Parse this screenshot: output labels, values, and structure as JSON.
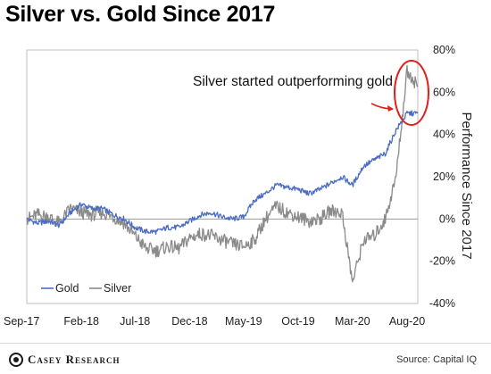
{
  "header": {
    "title": "Silver vs. Gold Since 2017"
  },
  "footer": {
    "brand": "Casey Research",
    "source": "Source: Capital IQ"
  },
  "colors": {
    "gold": "#4a6cc4",
    "silver": "#8a8a8a",
    "highlight": "#e0201b",
    "zero_line": "#9a9a9a"
  },
  "chart_data": {
    "type": "line",
    "title": "Silver vs. Gold Since 2017",
    "ylabel": "Performance Since 2017",
    "ylim": [
      -40,
      80
    ],
    "yticks": [
      -40,
      -20,
      0,
      20,
      40,
      60,
      80
    ],
    "ytick_labels": [
      "-40%",
      "-20%",
      "0%",
      "20%",
      "40%",
      "60%",
      "80%"
    ],
    "xlim": [
      "2017-09-01",
      "2020-08-31"
    ],
    "xticks": [
      "2017-09-01",
      "2018-02-01",
      "2018-07-01",
      "2018-12-01",
      "2019-05-01",
      "2019-10-01",
      "2020-03-01",
      "2020-08-01"
    ],
    "xtick_labels": [
      "Sep-17",
      "Feb-18",
      "Jul-18",
      "Dec-18",
      "May-19",
      "Oct-19",
      "Mar-20",
      "Aug-20"
    ],
    "legend": {
      "placement": "bottom-left",
      "entries": [
        "Gold",
        "Silver"
      ]
    },
    "annotation": "Silver started outperforming gold",
    "series": [
      {
        "name": "Gold",
        "color": "#4a6cc4",
        "points": [
          [
            "2017-09-01",
            0
          ],
          [
            "2017-10-01",
            -2
          ],
          [
            "2017-11-01",
            -1
          ],
          [
            "2017-12-01",
            -3
          ],
          [
            "2018-01-01",
            3
          ],
          [
            "2018-02-01",
            7
          ],
          [
            "2018-03-01",
            5
          ],
          [
            "2018-04-01",
            5
          ],
          [
            "2018-05-01",
            2
          ],
          [
            "2018-06-01",
            0
          ],
          [
            "2018-07-01",
            -4
          ],
          [
            "2018-08-01",
            -6
          ],
          [
            "2018-09-01",
            -6
          ],
          [
            "2018-10-01",
            -4
          ],
          [
            "2018-11-01",
            -4
          ],
          [
            "2018-12-01",
            -1
          ],
          [
            "2019-01-01",
            2
          ],
          [
            "2019-02-01",
            3
          ],
          [
            "2019-03-01",
            1
          ],
          [
            "2019-04-01",
            0
          ],
          [
            "2019-05-01",
            1
          ],
          [
            "2019-06-01",
            9
          ],
          [
            "2019-07-01",
            12
          ],
          [
            "2019-08-01",
            16
          ],
          [
            "2019-09-01",
            15
          ],
          [
            "2019-10-01",
            14
          ],
          [
            "2019-11-01",
            12
          ],
          [
            "2019-12-01",
            14
          ],
          [
            "2020-01-01",
            17
          ],
          [
            "2020-02-01",
            20
          ],
          [
            "2020-03-01",
            16
          ],
          [
            "2020-04-01",
            25
          ],
          [
            "2020-05-01",
            28
          ],
          [
            "2020-06-01",
            31
          ],
          [
            "2020-07-01",
            42
          ],
          [
            "2020-08-01",
            50
          ],
          [
            "2020-08-31",
            50
          ]
        ]
      },
      {
        "name": "Silver",
        "color": "#8a8a8a",
        "points": [
          [
            "2017-09-01",
            0
          ],
          [
            "2017-10-01",
            2
          ],
          [
            "2017-11-01",
            1
          ],
          [
            "2017-12-01",
            -2
          ],
          [
            "2018-01-01",
            5
          ],
          [
            "2018-02-01",
            3
          ],
          [
            "2018-03-01",
            2
          ],
          [
            "2018-04-01",
            3
          ],
          [
            "2018-05-01",
            1
          ],
          [
            "2018-06-01",
            -2
          ],
          [
            "2018-07-01",
            -8
          ],
          [
            "2018-08-01",
            -14
          ],
          [
            "2018-09-01",
            -15
          ],
          [
            "2018-10-01",
            -13
          ],
          [
            "2018-11-01",
            -14
          ],
          [
            "2018-12-01",
            -9
          ],
          [
            "2019-01-01",
            -7
          ],
          [
            "2019-02-01",
            -8
          ],
          [
            "2019-03-01",
            -10
          ],
          [
            "2019-04-01",
            -12
          ],
          [
            "2019-05-01",
            -13
          ],
          [
            "2019-06-01",
            -10
          ],
          [
            "2019-07-01",
            0
          ],
          [
            "2019-08-01",
            6
          ],
          [
            "2019-09-01",
            3
          ],
          [
            "2019-10-01",
            1
          ],
          [
            "2019-11-01",
            -1
          ],
          [
            "2019-12-01",
            0
          ],
          [
            "2020-01-01",
            4
          ],
          [
            "2020-02-01",
            3
          ],
          [
            "2020-03-01",
            -30
          ],
          [
            "2020-04-01",
            -10
          ],
          [
            "2020-05-01",
            -8
          ],
          [
            "2020-06-01",
            0
          ],
          [
            "2020-07-01",
            20
          ],
          [
            "2020-08-01",
            70
          ],
          [
            "2020-08-31",
            63
          ]
        ]
      }
    ],
    "reference_line": {
      "y": 0
    }
  }
}
